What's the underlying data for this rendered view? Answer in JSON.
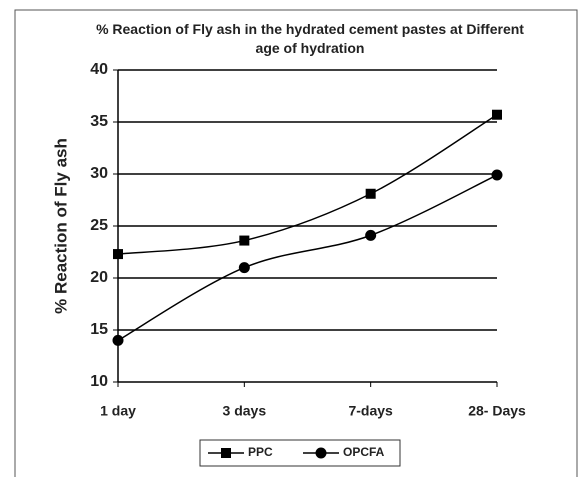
{
  "chart_data": {
    "type": "line",
    "title": "% Reaction of Fly ash in the hydrated cement pastes at Different age of hydration",
    "y_label": "% Reaction of Fly ash",
    "categories": [
      "1 day",
      "3 days",
      "7-days",
      "28- Days"
    ],
    "series": [
      {
        "name": "PPC",
        "color": "#000000",
        "marker": "square",
        "values": [
          22.3,
          23.6,
          28.1,
          35.7
        ]
      },
      {
        "name": "OPCFA",
        "color": "#000000",
        "marker": "circle",
        "values": [
          14.0,
          21.0,
          24.1,
          29.9
        ]
      }
    ],
    "ylim": [
      10,
      40
    ],
    "yticks": [
      10,
      15,
      20,
      25,
      30,
      35,
      40
    ],
    "grid": true,
    "legend": "bottom"
  }
}
